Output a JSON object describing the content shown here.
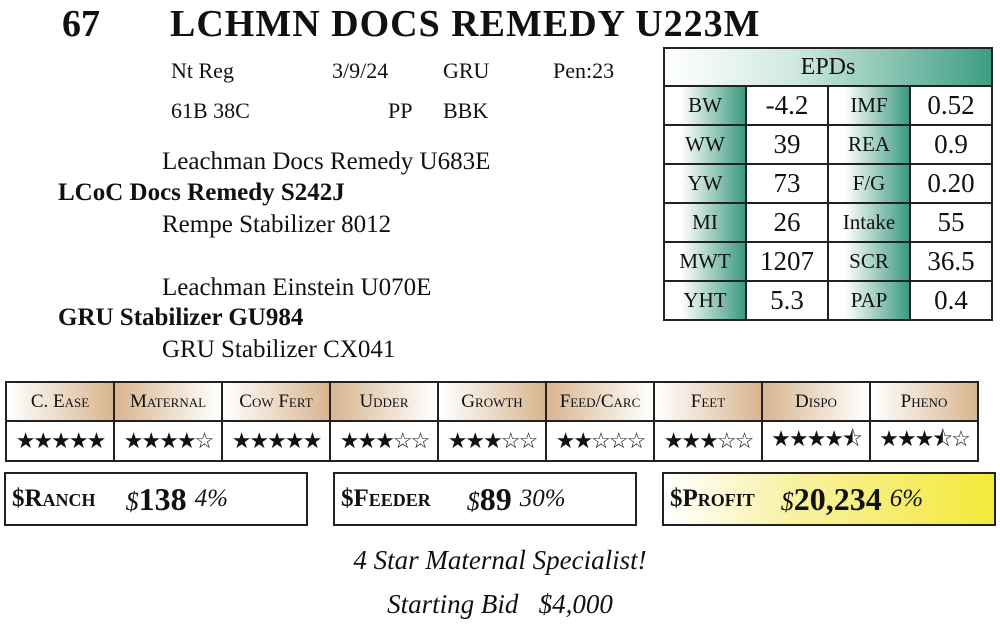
{
  "lot": "67",
  "title": "LCHMN DOCS REMEDY U223M",
  "info": {
    "reg": "Nt Reg",
    "dob": "3/9/24",
    "owner": "GRU",
    "pen": "Pen:23",
    "tattoo": "61B 38C",
    "polled": "PP",
    "color": "BBK"
  },
  "pedigree": {
    "ss": "Leachman Docs Remedy U683E",
    "sire": "LCoC Docs Remedy S242J",
    "sd": "Rempe Stabilizer 8012",
    "ds": "Leachman Einstein U070E",
    "dam": "GRU Stabilizer GU984",
    "dd": "GRU Stabilizer CX041"
  },
  "epd": {
    "header": "EPDs",
    "rows": [
      {
        "l1": "BW",
        "v1": "-4.2",
        "l2": "IMF",
        "v2": "0.52"
      },
      {
        "l1": "WW",
        "v1": "39",
        "l2": "REA",
        "v2": "0.9"
      },
      {
        "l1": "YW",
        "v1": "73",
        "l2": "F/G",
        "v2": "0.20"
      },
      {
        "l1": "MI",
        "v1": "26",
        "l2": "Intake",
        "v2": "55"
      },
      {
        "l1": "MWT",
        "v1": "1207",
        "l2": "SCR",
        "v2": "36.5"
      },
      {
        "l1": "YHT",
        "v1": "5.3",
        "l2": "PAP",
        "v2": "0.4"
      }
    ]
  },
  "categories": [
    {
      "label": "C. Ease",
      "stars": 5
    },
    {
      "label": "Maternal",
      "stars": 4
    },
    {
      "label": "Cow Fert",
      "stars": 5
    },
    {
      "label": "Udder",
      "stars": 3
    },
    {
      "label": "Growth",
      "stars": 3
    },
    {
      "label": "Feed/Carc",
      "stars": 2
    },
    {
      "label": "Feet",
      "stars": 3
    },
    {
      "label": "Dispo",
      "stars": 4.5
    },
    {
      "label": "Pheno",
      "stars": 3.5
    }
  ],
  "indexes": {
    "ranch": {
      "label": "$Ranch",
      "sign": "$",
      "value": "138",
      "pct": "4%"
    },
    "feeder": {
      "label": "$Feeder",
      "sign": "$",
      "value": "89",
      "pct": "30%"
    },
    "profit": {
      "label": "$Profit",
      "sign": "$",
      "value": "20,234",
      "pct": "6%"
    }
  },
  "colors": {
    "epd_teal": "#3a9a80",
    "category_tan": "#d9b690",
    "profit_yellow": "#f4e93a"
  },
  "footer": {
    "tagline": "4 Star Maternal Specialist!",
    "bid": "Starting Bid   $4,000"
  }
}
